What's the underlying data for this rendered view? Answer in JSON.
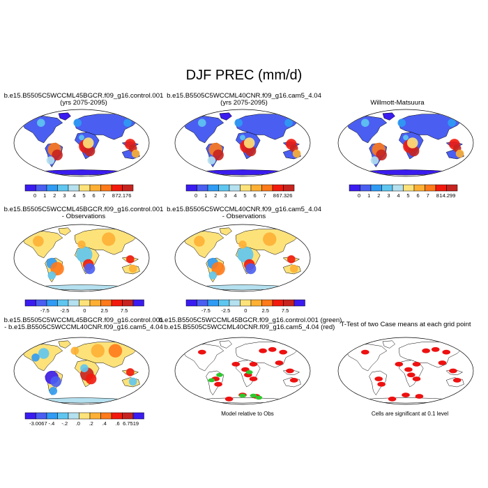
{
  "title": "DJF PREC (mm/d)",
  "colors": {
    "abs_palette": [
      "#3a1cf0",
      "#4a5ef2",
      "#2f9bf4",
      "#5fc6f0",
      "#b4e0ef",
      "#fde27a",
      "#fdb034",
      "#ff7a1a",
      "#f21a0d",
      "#c7231f"
    ],
    "diff_palette": [
      "#3a1cf0",
      "#4a5ef2",
      "#2f9bf4",
      "#5fc6f0",
      "#b4e0ef",
      "#fde27a",
      "#fdb034",
      "#ff7a1a",
      "#f21a0d",
      "#c7231f"
    ],
    "ttest_marks": "#ee1010",
    "green_marks": "#2ec82e",
    "land_outline": "#000000"
  },
  "panels": [
    {
      "id": "p1",
      "title1": "b.e15.B5505C5WCCML45BGCR.f09_g16.control.001",
      "title2": "(yrs 2075-2095)",
      "colorbar": [
        "0",
        "1",
        "2",
        "3",
        "4",
        "5",
        "6",
        "7",
        "8",
        "72.176"
      ],
      "kind": "abs"
    },
    {
      "id": "p2",
      "title1": "b.e15.B5505C5WCCML40CNR.f09_g16.cam5_4.04",
      "title2": "(yrs 2075-2095)",
      "colorbar": [
        "0",
        "1",
        "2",
        "3",
        "4",
        "5",
        "6",
        "7",
        "8",
        "67.326"
      ],
      "kind": "abs"
    },
    {
      "id": "p3",
      "title1": "Willmott-Matsuura",
      "title2": "",
      "colorbar": [
        "0",
        "1",
        "2",
        "3",
        "4",
        "5",
        "6",
        "7",
        "8",
        "14.299"
      ],
      "kind": "abs"
    },
    {
      "id": "p4",
      "title1": "b.e15.B5505C5WCCML45BGCR.f09_g16.control.001",
      "title2": "- Observations",
      "colorbar": [
        "-7.5",
        "-2.5",
        "0",
        "2.5",
        "7.5"
      ],
      "kind": "diff"
    },
    {
      "id": "p5",
      "title1": "b.e15.B5505C5WCCML40CNR.f09_g16.cam5_4.04",
      "title2": "- Observations",
      "colorbar": [
        "-7.5",
        "-2.5",
        "0",
        "2.5",
        "7.5"
      ],
      "kind": "diff"
    },
    {
      "id": "p6",
      "title1": "b.e15.B5505C5WCCML45BGCR.f09_g16.control.001",
      "title2": "- b.e15.B5505C5WCCML40CNR.f09_g16.cam5_4.04",
      "colorbar": [
        "-3.0067",
        "-.4",
        "-.2",
        ".0",
        ".2",
        ".4",
        ".6",
        "6.7519"
      ],
      "kind": "diff2"
    },
    {
      "id": "p7",
      "title1": "b.e15.B5505C5WCCML45BGCR.f09_g16.control.001 (green)",
      "title2": "b.e15.B5505C5WCCML40CNR.f09_g16.cam5_4.04 (red)",
      "caption": "Model relative to Obs",
      "kind": "marks"
    },
    {
      "id": "p8",
      "title1": "T-Test of two Case means at each grid point",
      "title2": "",
      "caption": "Cells are significant at 0.1 level",
      "kind": "ttest"
    }
  ],
  "chart_data": {
    "type": "heatmap",
    "title": "DJF PREC (mm/d)",
    "maps": [
      {
        "panel": "p1",
        "projection": "robinson",
        "contour_levels": [
          0,
          1,
          2,
          3,
          4,
          5,
          6,
          7,
          8
        ],
        "max": 72.176
      },
      {
        "panel": "p2",
        "projection": "robinson",
        "contour_levels": [
          0,
          1,
          2,
          3,
          4,
          5,
          6,
          7,
          8
        ],
        "max": 67.326
      },
      {
        "panel": "p3",
        "projection": "robinson",
        "contour_levels": [
          0,
          1,
          2,
          3,
          4,
          5,
          6,
          7,
          8
        ],
        "max": 14.299
      },
      {
        "panel": "p4",
        "projection": "robinson",
        "tick_labels": [
          -7.5,
          -2.5,
          0,
          2.5,
          7.5
        ]
      },
      {
        "panel": "p5",
        "projection": "robinson",
        "tick_labels": [
          -7.5,
          -2.5,
          0,
          2.5,
          7.5
        ]
      },
      {
        "panel": "p6",
        "projection": "robinson",
        "tick_labels": [
          -3.0067,
          -0.4,
          -0.2,
          0.0,
          0.2,
          0.4,
          0.6,
          6.7519
        ]
      },
      {
        "panel": "p7",
        "projection": "robinson",
        "legend": [
          "control.001 (green)",
          "cam5_4.04 (red)"
        ]
      },
      {
        "panel": "p8",
        "projection": "robinson",
        "significance_level": 0.1
      }
    ]
  }
}
